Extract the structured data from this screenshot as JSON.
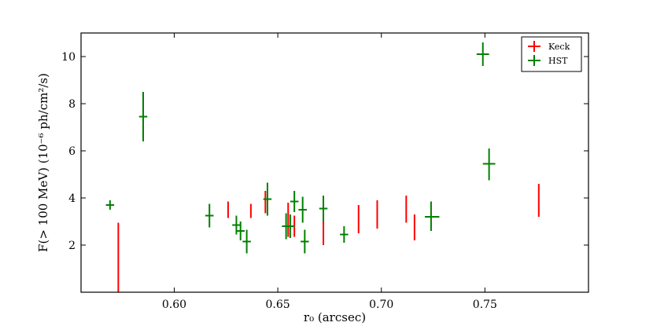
{
  "chart_data": {
    "type": "scatter",
    "xlabel": "r₀ (arcsec)",
    "ylabel": "F(> 100 MeV) (10⁻⁶ ph/cm²/s)",
    "xlim": [
      0.555,
      0.8
    ],
    "ylim": [
      0,
      11
    ],
    "xticks": [
      0.6,
      0.65,
      0.7,
      0.75
    ],
    "xtick_labels": [
      "0.60",
      "0.65",
      "0.70",
      "0.75"
    ],
    "yticks": [
      2,
      4,
      6,
      8,
      10
    ],
    "ytick_labels": [
      "2",
      "4",
      "6",
      "8",
      "10"
    ],
    "grid": false,
    "legend_position": "top-right",
    "series": [
      {
        "name": "Keck",
        "color": "#ff0000",
        "points": [
          {
            "x": 0.573,
            "y": 0.55,
            "ylo": 0.0,
            "yhi": 2.95
          },
          {
            "x": 0.626,
            "y": 3.45,
            "ylo": 3.15,
            "yhi": 3.85
          },
          {
            "x": 0.637,
            "y": 3.45,
            "ylo": 3.15,
            "yhi": 3.75
          },
          {
            "x": 0.644,
            "y": 3.85,
            "ylo": 3.35,
            "yhi": 4.3
          },
          {
            "x": 0.655,
            "y": 3.05,
            "ylo": 2.35,
            "yhi": 3.8
          },
          {
            "x": 0.658,
            "y": 2.8,
            "ylo": 2.35,
            "yhi": 3.25
          },
          {
            "x": 0.672,
            "y": 2.55,
            "ylo": 2.0,
            "yhi": 3.05
          },
          {
            "x": 0.689,
            "y": 3.1,
            "ylo": 2.5,
            "yhi": 3.7
          },
          {
            "x": 0.698,
            "y": 3.3,
            "ylo": 2.7,
            "yhi": 3.9
          },
          {
            "x": 0.712,
            "y": 3.5,
            "ylo": 2.95,
            "yhi": 4.1
          },
          {
            "x": 0.716,
            "y": 2.7,
            "ylo": 2.2,
            "yhi": 3.3
          },
          {
            "x": 0.776,
            "y": 3.9,
            "ylo": 3.2,
            "yhi": 4.6
          }
        ]
      },
      {
        "name": "HST",
        "color": "#008000",
        "points": [
          {
            "x": 0.569,
            "y": 3.7,
            "xlo": 0.567,
            "xhi": 0.571,
            "ylo": 3.5,
            "yhi": 3.9
          },
          {
            "x": 0.585,
            "y": 7.45,
            "xlo": 0.583,
            "xhi": 0.587,
            "ylo": 6.4,
            "yhi": 8.5
          },
          {
            "x": 0.617,
            "y": 3.25,
            "xlo": 0.615,
            "xhi": 0.619,
            "ylo": 2.75,
            "yhi": 3.75
          },
          {
            "x": 0.63,
            "y": 2.85,
            "xlo": 0.628,
            "xhi": 0.632,
            "ylo": 2.45,
            "yhi": 3.25
          },
          {
            "x": 0.632,
            "y": 2.6,
            "xlo": 0.63,
            "xhi": 0.634,
            "ylo": 2.2,
            "yhi": 3.0
          },
          {
            "x": 0.635,
            "y": 2.15,
            "xlo": 0.633,
            "xhi": 0.637,
            "ylo": 1.65,
            "yhi": 2.65
          },
          {
            "x": 0.645,
            "y": 3.95,
            "xlo": 0.643,
            "xhi": 0.647,
            "ylo": 3.25,
            "yhi": 4.65
          },
          {
            "x": 0.654,
            "y": 2.8,
            "xlo": 0.652,
            "xhi": 0.656,
            "ylo": 2.25,
            "yhi": 3.35
          },
          {
            "x": 0.656,
            "y": 2.8,
            "xlo": 0.654,
            "xhi": 0.658,
            "ylo": 2.3,
            "yhi": 3.3
          },
          {
            "x": 0.658,
            "y": 3.85,
            "xlo": 0.656,
            "xhi": 0.66,
            "ylo": 3.4,
            "yhi": 4.3
          },
          {
            "x": 0.662,
            "y": 3.5,
            "xlo": 0.66,
            "xhi": 0.664,
            "ylo": 2.95,
            "yhi": 4.05
          },
          {
            "x": 0.663,
            "y": 2.15,
            "xlo": 0.661,
            "xhi": 0.665,
            "ylo": 1.65,
            "yhi": 2.65
          },
          {
            "x": 0.672,
            "y": 3.55,
            "xlo": 0.67,
            "xhi": 0.674,
            "ylo": 3.0,
            "yhi": 4.1
          },
          {
            "x": 0.682,
            "y": 2.45,
            "xlo": 0.68,
            "xhi": 0.684,
            "ylo": 2.1,
            "yhi": 2.8
          },
          {
            "x": 0.724,
            "y": 3.2,
            "xlo": 0.721,
            "xhi": 0.728,
            "ylo": 2.6,
            "yhi": 3.85
          },
          {
            "x": 0.749,
            "y": 10.1,
            "xlo": 0.746,
            "xhi": 0.752,
            "ylo": 9.6,
            "yhi": 10.6
          },
          {
            "x": 0.752,
            "y": 5.45,
            "xlo": 0.749,
            "xhi": 0.755,
            "ylo": 4.75,
            "yhi": 6.1
          }
        ]
      }
    ]
  }
}
